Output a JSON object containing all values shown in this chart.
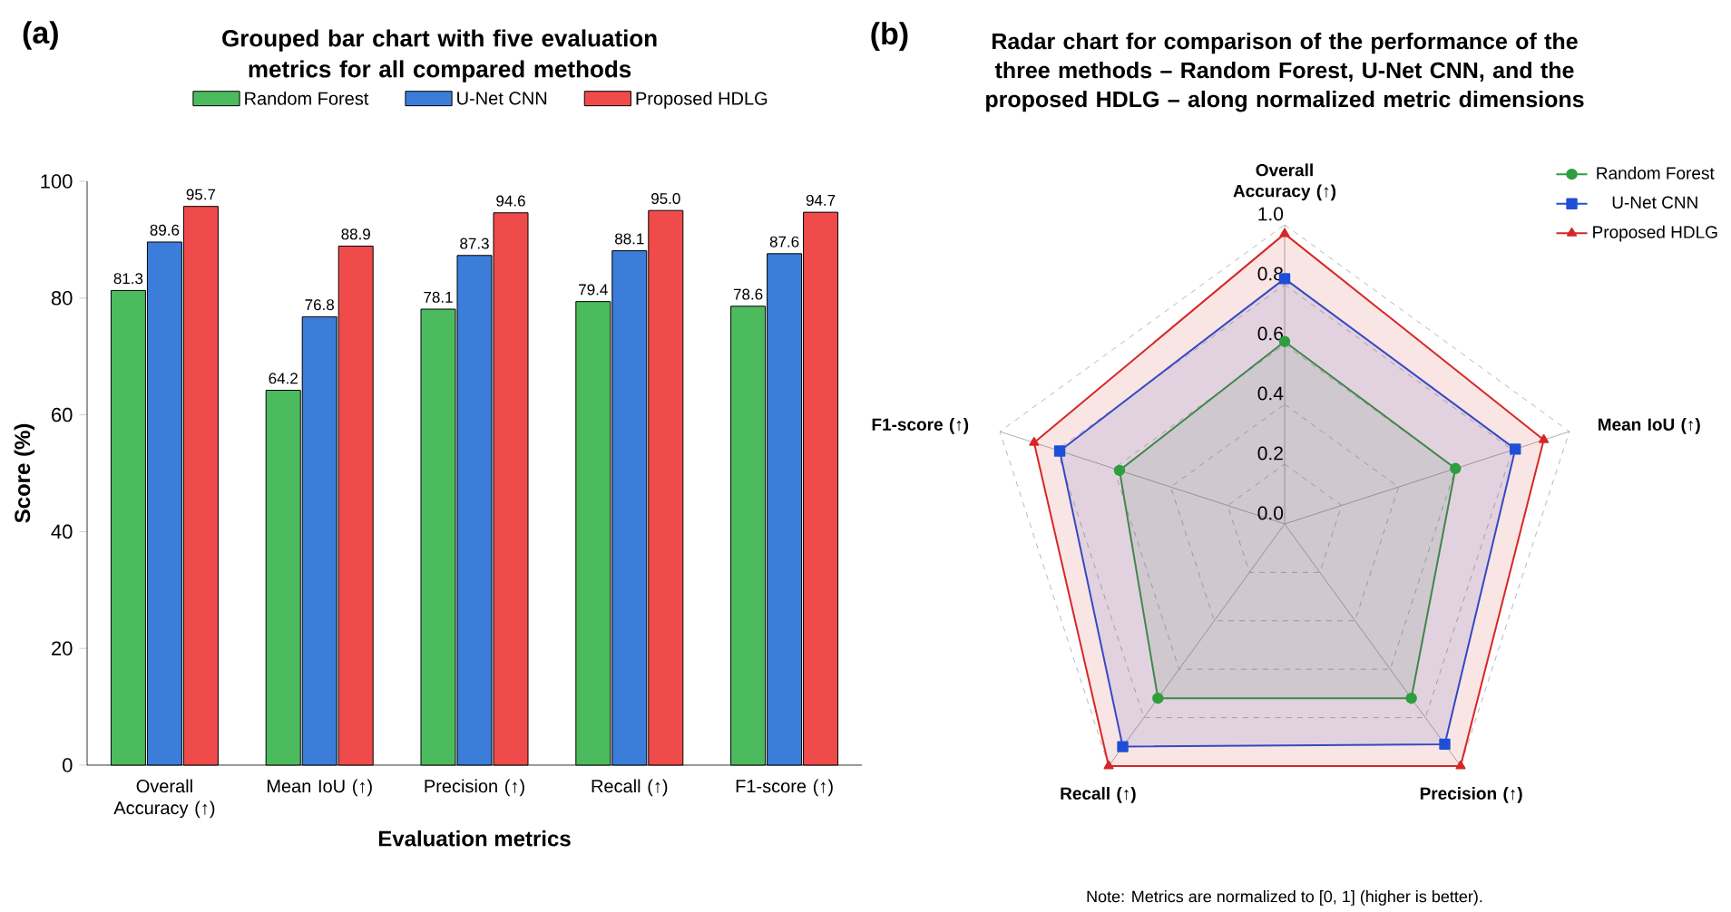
{
  "chart_data": [
    {
      "type": "bar",
      "title": "Grouped bar chart with five evaluation metrics for all compared methods",
      "xlabel": "Evaluation metrics",
      "ylabel": "Score (%)",
      "categories": [
        "Overall Accuracy (↑)",
        "Mean IoU (↑)",
        "Precision (↑)",
        "Recall (↑)",
        "F1-score (↑)"
      ],
      "series": [
        {
          "name": "Random Forest",
          "color": "#4cbb5e",
          "values": [
            81.3,
            64.2,
            78.1,
            79.4,
            78.6
          ],
          "value_labels": [
            "81.3",
            "64.2",
            "78.1",
            "79.4",
            "78.6"
          ]
        },
        {
          "name": "U-Net CNN",
          "color": "#3b7dd8",
          "values": [
            89.6,
            76.8,
            87.3,
            88.1,
            87.6
          ],
          "value_labels": [
            "89.6",
            "76.8",
            "87.3",
            "88.1",
            "87.6"
          ]
        },
        {
          "name": "Proposed HDLG",
          "color": "#f04b4b",
          "values": [
            95.7,
            88.9,
            94.6,
            95.0,
            94.7
          ],
          "value_labels": [
            "95.7",
            "88.9",
            "94.6",
            "95.0",
            "94.7"
          ]
        }
      ],
      "ylim": [
        0,
        100
      ],
      "yticks": [
        0,
        20,
        40,
        60,
        80,
        100
      ],
      "legend": "top",
      "annotations": [
        "(a)"
      ]
    },
    {
      "type": "radar",
      "title": "Radar chart for comparison of the performance of the three methods – Random Forest, U-Net CNN, and the proposed HDLG – along normalized metric dimensions",
      "categories": [
        "Overall Accuracy (↑)",
        "Mean IoU (↑)",
        "Precision (↑)",
        "Recall (↑)",
        "F1-score (↑)"
      ],
      "series": [
        {
          "name": "Random Forest",
          "color": "#2e9e3e",
          "marker": "circle",
          "values": [
            0.61,
            0.6,
            0.72,
            0.72,
            0.58
          ]
        },
        {
          "name": "U-Net CNN",
          "color": "#1f4fd6",
          "marker": "square",
          "values": [
            0.82,
            0.81,
            0.91,
            0.92,
            0.79
          ]
        },
        {
          "name": "Proposed HDLG",
          "color": "#d62728",
          "marker": "triangle",
          "values": [
            0.97,
            0.91,
            1.0,
            1.0,
            0.88
          ]
        }
      ],
      "ylim": [
        0,
        1
      ],
      "yticks": [
        {
          "value": 0,
          "label": "0.0"
        },
        0.2,
        0.4,
        0.6,
        0.8,
        {
          "value": 1,
          "label": "1.0"
        }
      ],
      "grid": true,
      "legend": "top right",
      "annotations": [
        "(b)",
        "Note: Metrics are normalized to [0, 1] (higher is better)."
      ]
    }
  ]
}
